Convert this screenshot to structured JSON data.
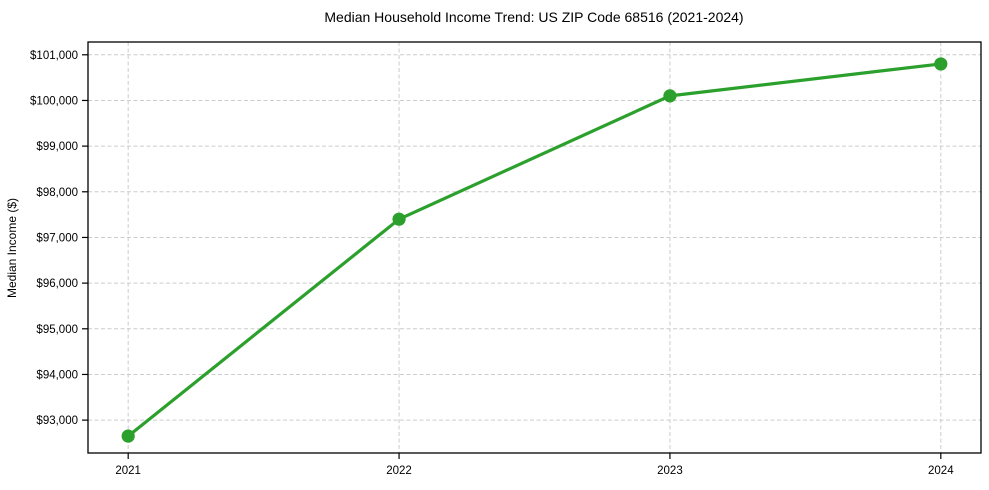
{
  "chart_data": {
    "type": "line",
    "title": "Median Household Income Trend: US ZIP Code 68516 (2021-2024)",
    "xlabel": "",
    "ylabel": "Median Income ($)",
    "categories": [
      "2021",
      "2022",
      "2023",
      "2024"
    ],
    "values": [
      92650,
      97400,
      100100,
      100800
    ],
    "ylim": [
      92280,
      101280
    ],
    "yticks": [
      93000,
      94000,
      95000,
      96000,
      97000,
      98000,
      99000,
      100000,
      101000
    ],
    "ytick_labels": [
      "$93,000",
      "$94,000",
      "$95,000",
      "$96,000",
      "$97,000",
      "$98,000",
      "$99,000",
      "$100,000",
      "$101,000"
    ],
    "grid": {
      "horizontal": true,
      "vertical": true,
      "style": "dashed"
    },
    "legend": "none",
    "line_color": "#2ca02c",
    "marker": "circle",
    "marker_color": "#2ca02c",
    "grid_color": "#cccccc",
    "axis_color": "#000000",
    "text_color": "#000000",
    "background_color": "#ffffff"
  }
}
